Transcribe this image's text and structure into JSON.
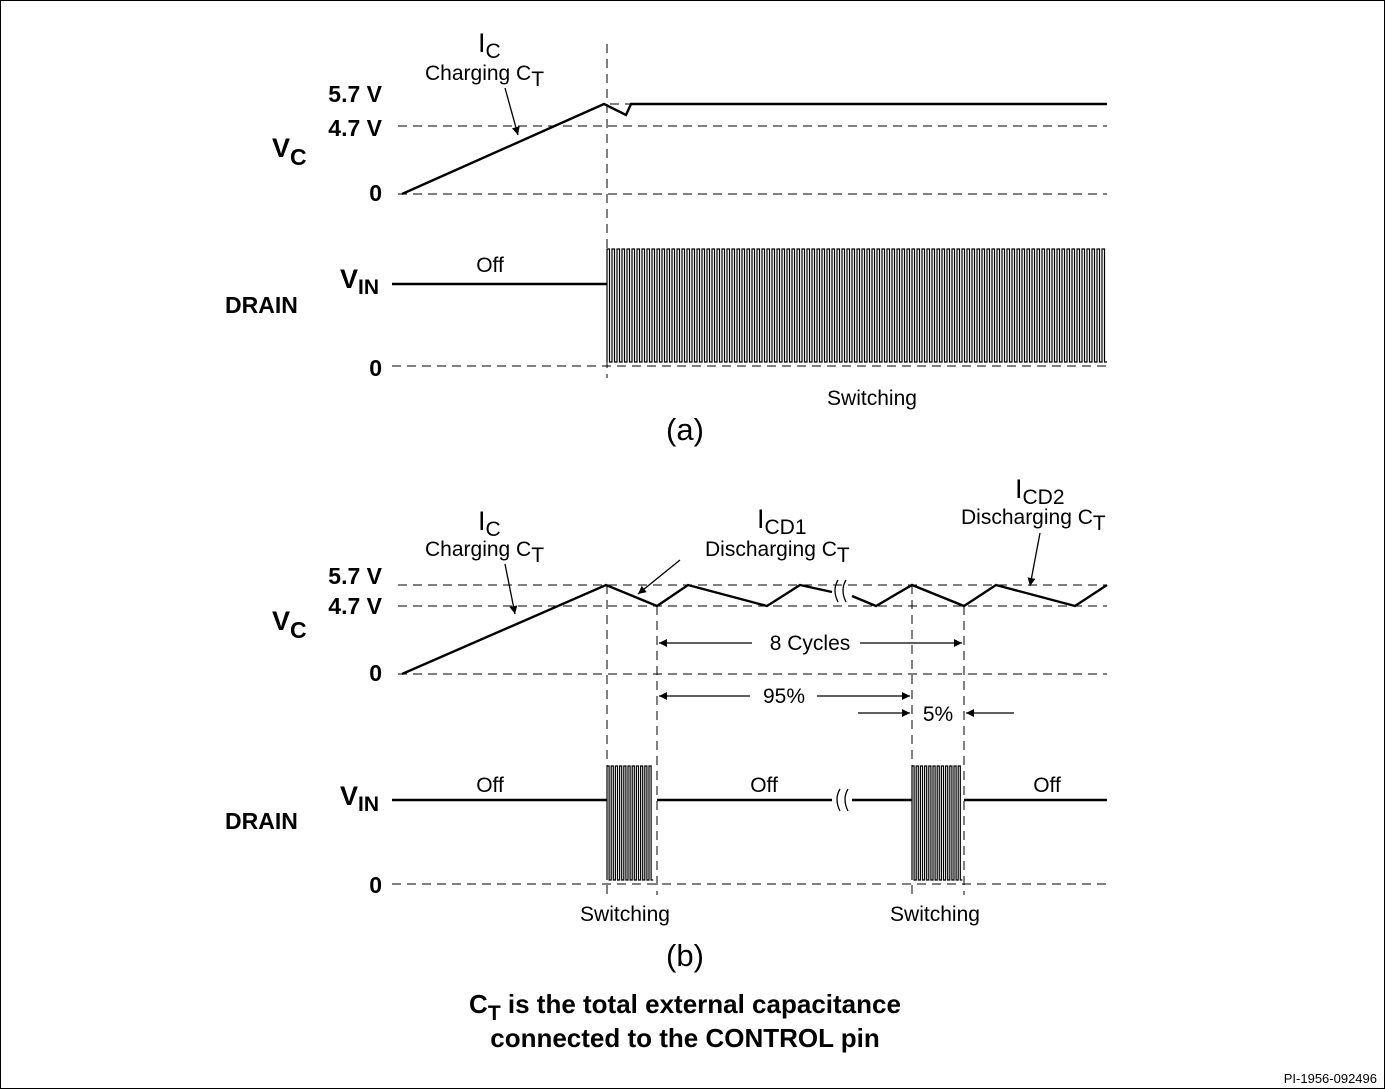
{
  "panel_a": {
    "caption": "(a)",
    "vc_axis": {
      "sym": "V",
      "sub": "C",
      "v57": "5.7 V",
      "v47": "4.7 V",
      "v0": "0"
    },
    "drain_axis": {
      "name": "DRAIN",
      "sym": "V",
      "sub": "IN",
      "v0": "0"
    },
    "ic_label": {
      "sym": "I",
      "sub": "C",
      "text": "Charging C",
      "text_sub": "T"
    },
    "off_label": "Off",
    "switching_label": "Switching"
  },
  "panel_b": {
    "caption": "(b)",
    "vc_axis": {
      "sym": "V",
      "sub": "C",
      "v57": "5.7 V",
      "v47": "4.7 V",
      "v0": "0"
    },
    "drain_axis": {
      "name": "DRAIN",
      "sym": "V",
      "sub": "IN",
      "v0": "0"
    },
    "ic_label": {
      "sym": "I",
      "sub": "C",
      "text": "Charging C",
      "text_sub": "T"
    },
    "icd1_label": {
      "sym": "I",
      "sub": "CD1",
      "text": "Discharging C",
      "text_sub": "T"
    },
    "icd2_label": {
      "sym": "I",
      "sub": "CD2",
      "text": "Discharging C",
      "text_sub": "T"
    },
    "cycles_label": "8 Cycles",
    "pct95_label": "95%",
    "pct5_label": "5%",
    "off_labels": [
      "Off",
      "Off",
      "Off"
    ],
    "switching_labels": [
      "Switching",
      "Switching"
    ]
  },
  "footnote": {
    "line1_sym": "C",
    "line1_sub": "T",
    "line1_rest": " is the total external capacitance",
    "line2": "connected to the CONTROL pin"
  },
  "figure_id": "PI-1956-092496"
}
